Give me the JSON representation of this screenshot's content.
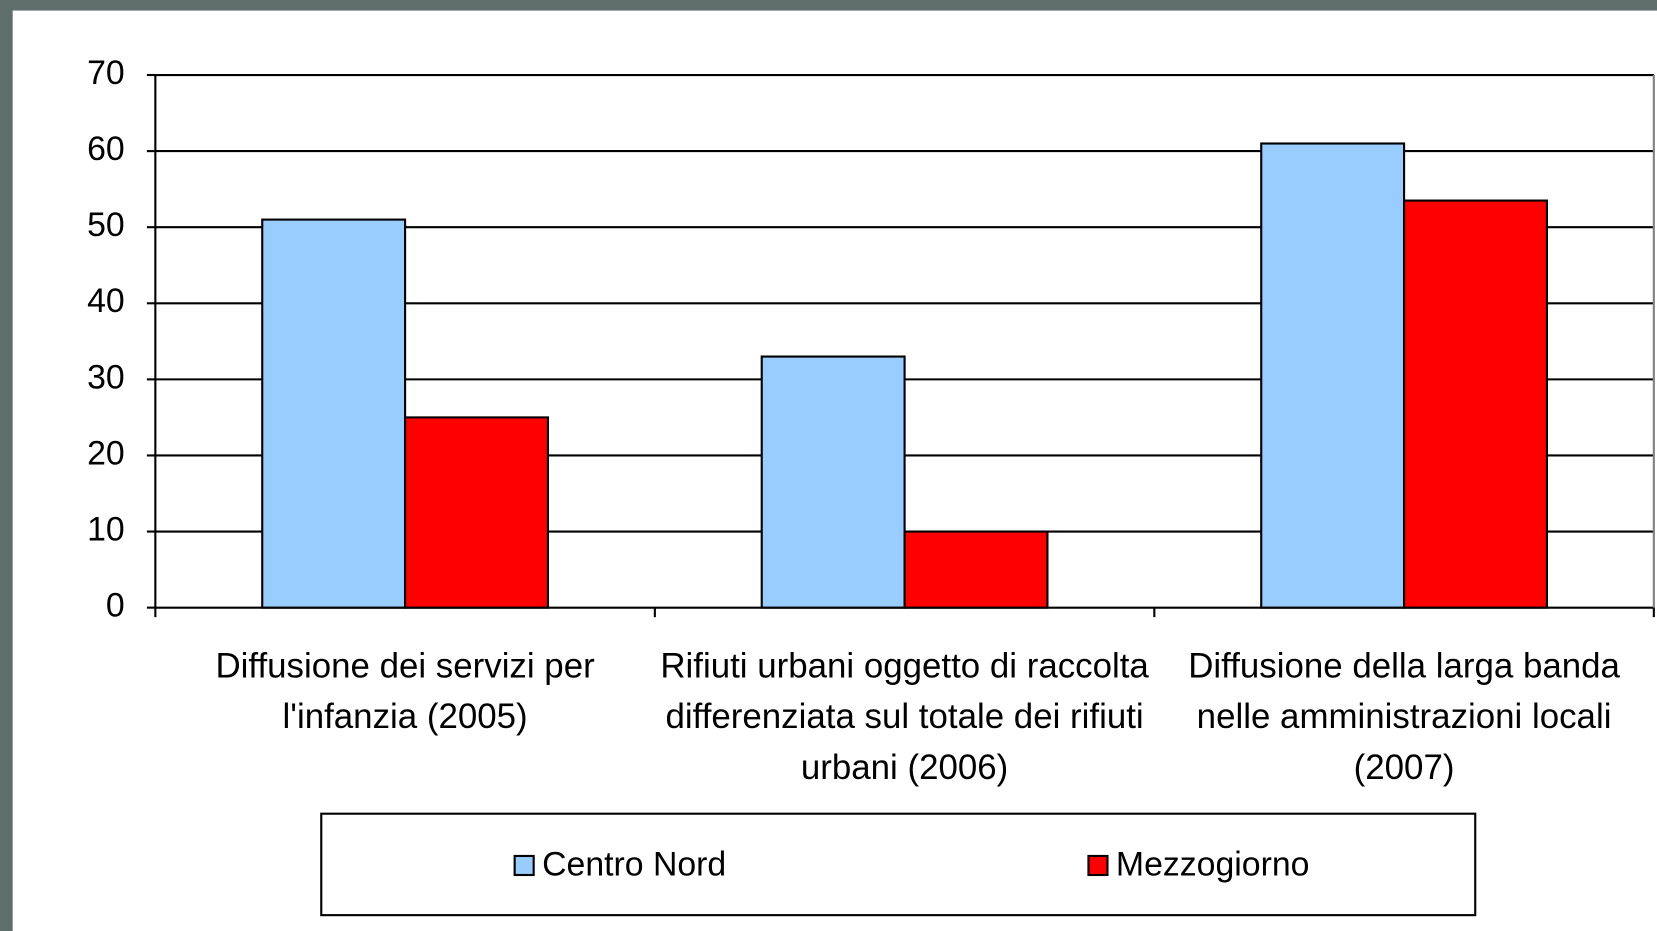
{
  "chart_data": {
    "type": "bar",
    "categories": [
      "Diffusione dei servizi per l'infanzia (2005)",
      "Rifiuti urbani oggetto di raccolta differenziata sul totale dei rifiuti urbani (2006)",
      "Diffusione della larga banda nelle amministrazioni locali (2007)"
    ],
    "series": [
      {
        "name": "Centro Nord",
        "color": "#99ccff",
        "values": [
          51,
          33,
          61
        ]
      },
      {
        "name": "Mezzogiorno",
        "color": "#ff0000",
        "values": [
          25,
          10,
          53.5
        ]
      }
    ],
    "ylim": [
      0,
      70
    ],
    "yticks": [
      0,
      10,
      20,
      30,
      40,
      50,
      60,
      70
    ],
    "grid": true,
    "legend": "bottom"
  }
}
